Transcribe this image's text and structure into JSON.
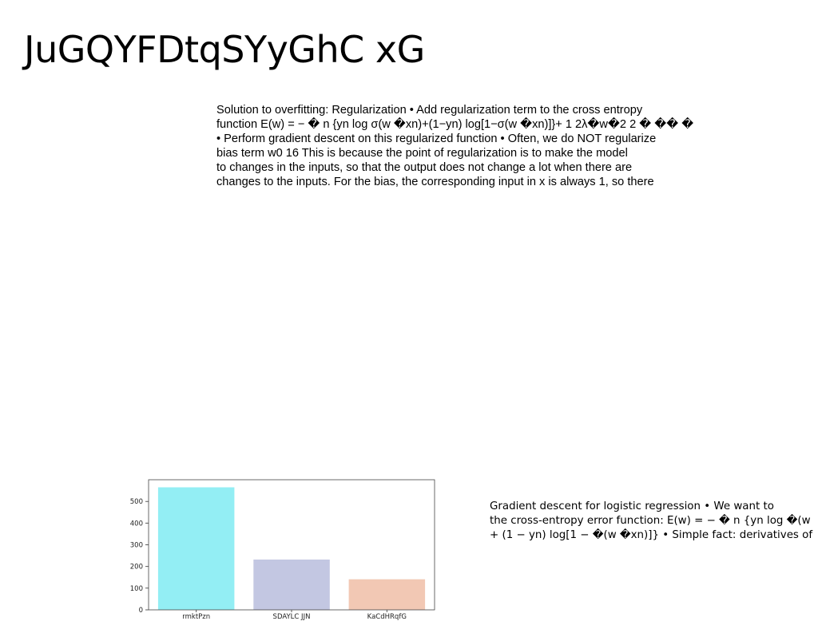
{
  "slide": {
    "title": "JuGQYFDtqSYyGhC xG"
  },
  "main_text": {
    "lines": [
      "Solution to overfitting: Regularization • Add regularization term to the cross entropy",
      "function E(w) = − � n {yn log σ(w �xn)+(1−yn) log[1−σ(w �xn)]}+ 1 2λ�w�2 2 � �� �",
      "• Perform gradient descent on this regularized function • Often, we do NOT regularize",
      "bias term w0 16 This is because the point of regularization is to make the model",
      "to changes in the inputs, so that the output does not change a lot when there are",
      "changes to the inputs. For the bias, the corresponding input in x is always 1, so there"
    ]
  },
  "side_text": {
    "lines": [
      "Gradient descent for logistic regression • We want to",
      "the cross-entropy error function: E(w) = − � n {yn log �(w",
      "+ (1 − yn) log[1 − �(w �xn)]} • Simple fact: derivatives of"
    ]
  },
  "chart_data": {
    "type": "bar",
    "categories": [
      "rmktPzn",
      "SDAYLC JJN",
      "KaCdHRqfG"
    ],
    "values": [
      565,
      232,
      141
    ],
    "colors": [
      "#93eef4",
      "#c3c7e2",
      "#f2c8b4"
    ],
    "ylim": [
      0,
      600
    ],
    "yticks": [
      0,
      100,
      200,
      300,
      400,
      500
    ],
    "title": "",
    "xlabel": "",
    "ylabel": "",
    "grid": false,
    "legend": "none"
  }
}
